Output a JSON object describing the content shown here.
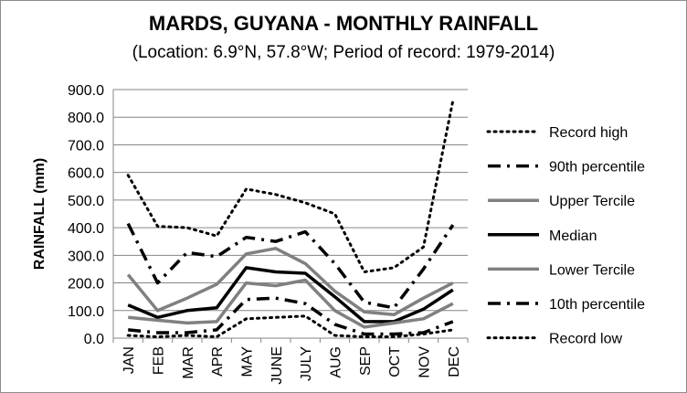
{
  "chart_data": {
    "type": "line",
    "title": "MARDS, GUYANA - MONTHLY RAINFALL",
    "subtitle": "(Location: 6.9°N, 57.8°W; Period of record: 1979-2014)",
    "xlabel": "",
    "ylabel": "RAINFALL (mm)",
    "ylim": [
      0,
      900
    ],
    "yticks": [
      "0.0",
      "100.0",
      "200.0",
      "300.0",
      "400.0",
      "500.0",
      "600.0",
      "700.0",
      "800.0",
      "900.0"
    ],
    "categories": [
      "JAN",
      "FEB",
      "MAR",
      "APR",
      "MAY",
      "JUNE",
      "JULY",
      "AUG",
      "SEP",
      "OCT",
      "NOV",
      "DEC"
    ],
    "grid": true,
    "legend_position": "right",
    "series": [
      {
        "name": "Record high",
        "style": "dotted",
        "color": "#000000",
        "values": [
          590,
          405,
          400,
          370,
          540,
          520,
          490,
          450,
          240,
          255,
          330,
          860
        ]
      },
      {
        "name": "90th percentile",
        "style": "dashdot",
        "color": "#000000",
        "values": [
          415,
          200,
          310,
          295,
          365,
          350,
          385,
          270,
          130,
          110,
          250,
          410
        ]
      },
      {
        "name": "Upper Tercile",
        "style": "solid-gray",
        "color": "#808080",
        "values": [
          230,
          100,
          145,
          195,
          305,
          325,
          270,
          170,
          95,
          85,
          145,
          200
        ]
      },
      {
        "name": "Median",
        "style": "solid",
        "color": "#000000",
        "values": [
          120,
          75,
          100,
          110,
          255,
          240,
          235,
          150,
          60,
          60,
          105,
          175
        ]
      },
      {
        "name": "Lower Tercile",
        "style": "solid-gray",
        "color": "#808080",
        "values": [
          75,
          65,
          55,
          60,
          200,
          190,
          210,
          100,
          40,
          55,
          70,
          125
        ]
      },
      {
        "name": "10th percentile",
        "style": "dashdot",
        "color": "#000000",
        "values": [
          30,
          20,
          20,
          30,
          140,
          145,
          125,
          50,
          15,
          15,
          20,
          60
        ]
      },
      {
        "name": "Record low",
        "style": "dotted",
        "color": "#000000",
        "values": [
          10,
          5,
          10,
          5,
          70,
          75,
          80,
          10,
          5,
          5,
          15,
          30
        ]
      }
    ]
  }
}
